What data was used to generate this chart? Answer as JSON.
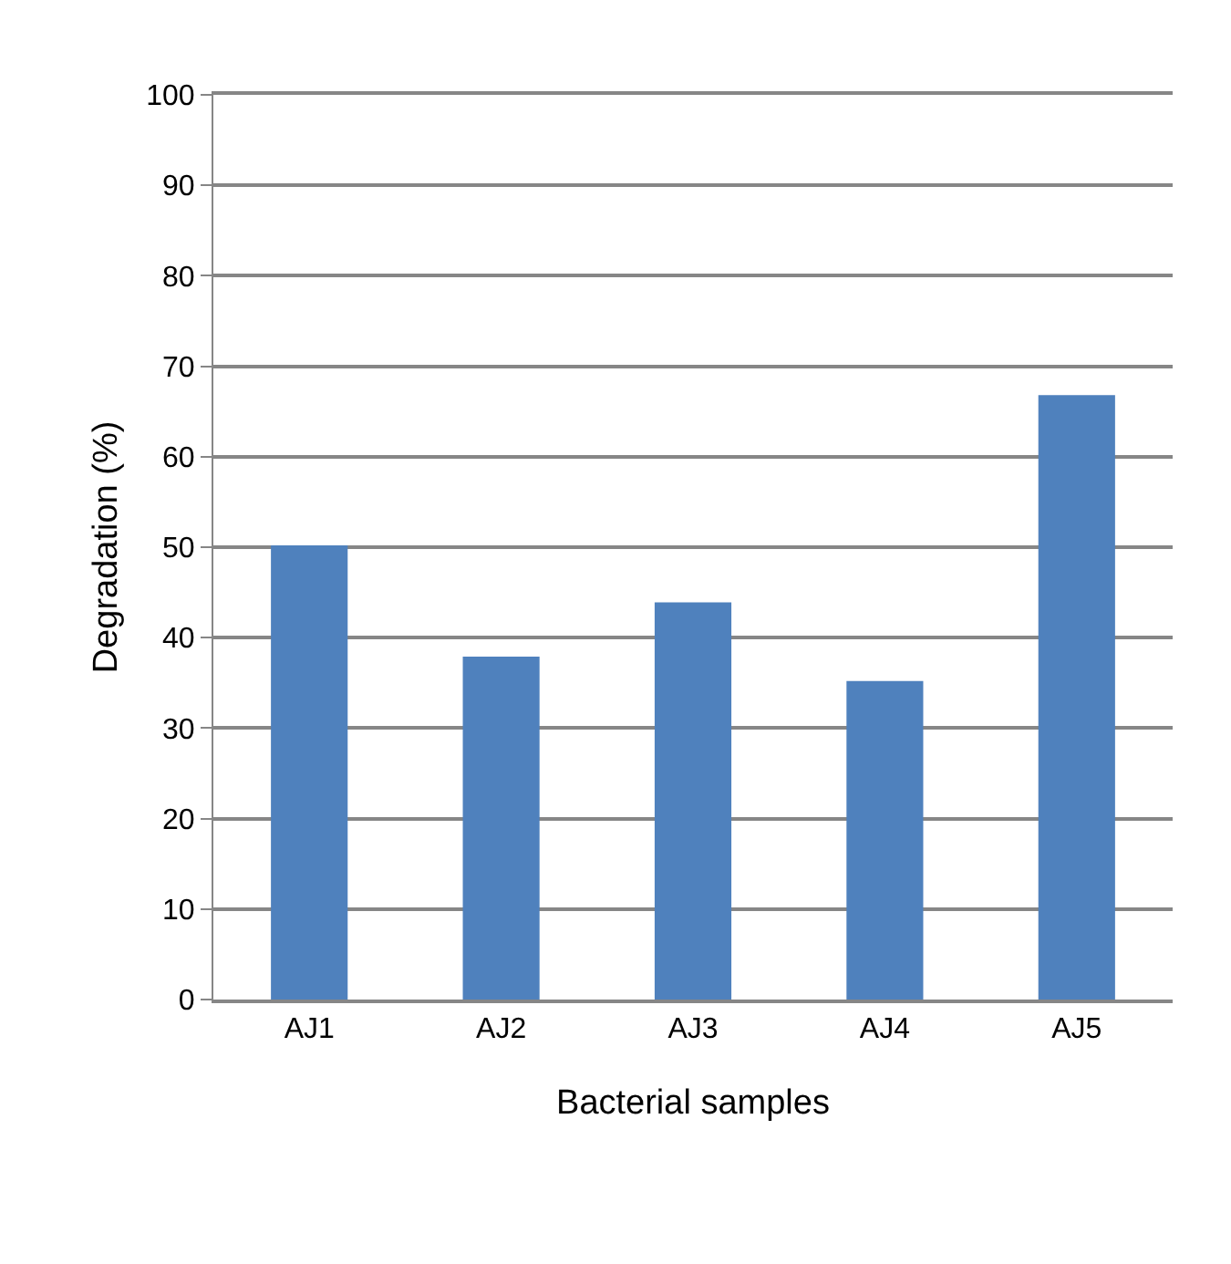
{
  "chart_data": {
    "type": "bar",
    "xlabel": "Bacterial samples",
    "ylabel": "Degradation (%)",
    "categories": [
      "AJ1",
      "AJ2",
      "AJ3",
      "AJ4",
      "AJ5"
    ],
    "values": [
      50.2,
      37.9,
      43.9,
      35.2,
      66.8
    ],
    "color": "#4f81bd",
    "ylim": [
      0,
      100
    ],
    "yticks": [
      0,
      10,
      20,
      30,
      40,
      50,
      60,
      70,
      80,
      90,
      100
    ],
    "grid": "y"
  }
}
